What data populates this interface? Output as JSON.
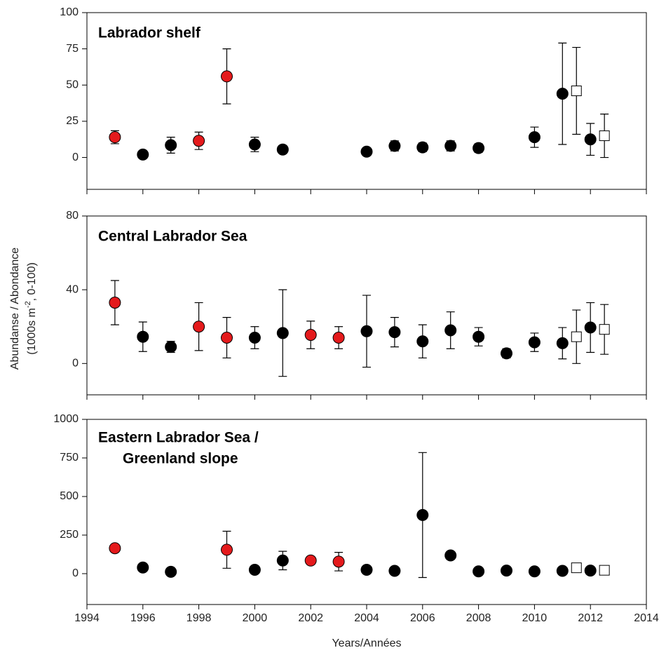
{
  "ylabel": {
    "line1": "Abundanse / Abondance",
    "line2_pre": "(1000s m",
    "line2_sup": "-2",
    "line2_post": ", 0-100)"
  },
  "xlabel": "Years/Années",
  "chart_data": [
    {
      "type": "scatter",
      "title_lines": [
        "Labrador shelf"
      ],
      "xlim": [
        1994,
        2014
      ],
      "xticks": [
        1994,
        1996,
        1998,
        2000,
        2002,
        2004,
        2006,
        2008,
        2010,
        2012,
        2014
      ],
      "show_xtick_labels": false,
      "ylim": [
        -22,
        100
      ],
      "yticks": [
        0,
        25,
        50,
        75,
        100
      ],
      "series": [
        {
          "color": "#e41a1c",
          "marker": "circle",
          "x": [
            1995,
            1998,
            1999
          ],
          "values": [
            14,
            11.5,
            56
          ],
          "errors": [
            4.5,
            6,
            19
          ]
        },
        {
          "color": "#000000",
          "marker": "circle",
          "x": [
            1996,
            1997,
            2000,
            2001,
            2004,
            2005,
            2006,
            2007,
            2008,
            2010,
            2011,
            2012
          ],
          "values": [
            2,
            8.5,
            9,
            5.5,
            4,
            8,
            7,
            8,
            6.5,
            14,
            44,
            12.5
          ],
          "errors": [
            null,
            5.5,
            5,
            2.5,
            2,
            3.5,
            3,
            3.5,
            3,
            7,
            35,
            11
          ]
        },
        {
          "color": "#ffffff",
          "marker": "square",
          "x": [
            2011.5,
            2012.5
          ],
          "values": [
            46,
            15
          ],
          "errors": [
            30,
            15
          ]
        }
      ]
    },
    {
      "type": "scatter",
      "title_lines": [
        "Central Labrador Sea"
      ],
      "xlim": [
        1994,
        2014
      ],
      "xticks": [
        1994,
        1996,
        1998,
        2000,
        2002,
        2004,
        2006,
        2008,
        2010,
        2012,
        2014
      ],
      "show_xtick_labels": false,
      "ylim": [
        -17,
        80
      ],
      "yticks": [
        0,
        40,
        80
      ],
      "series": [
        {
          "color": "#e41a1c",
          "marker": "circle",
          "x": [
            1995,
            1998,
            1999,
            2002,
            2003
          ],
          "values": [
            33,
            20,
            14,
            15.5,
            14
          ],
          "errors": [
            12,
            13,
            11,
            7.5,
            6
          ]
        },
        {
          "color": "#000000",
          "marker": "circle",
          "x": [
            1996,
            1997,
            2000,
            2001,
            2004,
            2005,
            2006,
            2007,
            2008,
            2009,
            2010,
            2011,
            2012
          ],
          "values": [
            14.5,
            9,
            14,
            16.5,
            17.5,
            17,
            12,
            18,
            14.5,
            5.5,
            11.5,
            11,
            19.5
          ],
          "errors": [
            8,
            3,
            6,
            23.5,
            19.5,
            8,
            9,
            10,
            5,
            2.5,
            5,
            8.5,
            13.5
          ]
        },
        {
          "color": "#ffffff",
          "marker": "square",
          "x": [
            2011.5,
            2012.5
          ],
          "values": [
            14.5,
            18.5
          ],
          "errors": [
            14.5,
            13.5
          ]
        }
      ]
    },
    {
      "type": "scatter",
      "title_lines": [
        "Eastern Labrador Sea /",
        "Greenland slope"
      ],
      "xlim": [
        1994,
        2014
      ],
      "xticks": [
        1994,
        1996,
        1998,
        2000,
        2002,
        2004,
        2006,
        2008,
        2010,
        2012,
        2014
      ],
      "show_xtick_labels": true,
      "ylim": [
        -200,
        1000
      ],
      "yticks": [
        0,
        250,
        500,
        750,
        1000
      ],
      "series": [
        {
          "color": "#e41a1c",
          "marker": "circle",
          "x": [
            1995,
            1999,
            2002,
            2003
          ],
          "values": [
            165,
            155,
            85,
            78
          ],
          "errors": [
            null,
            120,
            25,
            60
          ]
        },
        {
          "color": "#000000",
          "marker": "circle",
          "x": [
            1996,
            1997,
            2000,
            2001,
            2004,
            2005,
            2006,
            2007,
            2008,
            2009,
            2010,
            2011,
            2012
          ],
          "values": [
            40,
            12,
            25,
            85,
            25,
            18,
            380,
            118,
            15,
            20,
            15,
            18,
            20
          ],
          "errors": [
            null,
            null,
            15,
            60,
            20,
            null,
            405,
            25,
            null,
            10,
            null,
            10,
            null
          ]
        },
        {
          "color": "#ffffff",
          "marker": "square",
          "x": [
            2011.5,
            2012.5
          ],
          "values": [
            38,
            22
          ],
          "errors": [
            10,
            10
          ]
        }
      ]
    }
  ]
}
